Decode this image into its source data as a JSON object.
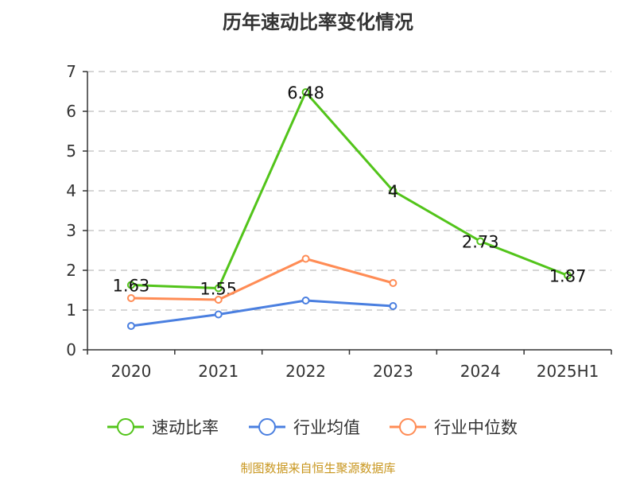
{
  "chart_data": {
    "type": "line",
    "title": "历年速动比率变化情况",
    "categories": [
      "2020",
      "2021",
      "2022",
      "2023",
      "2024",
      "2025H1"
    ],
    "ylim": [
      0,
      7
    ],
    "yticks": [
      0,
      1,
      2,
      3,
      4,
      5,
      6,
      7
    ],
    "grid": true,
    "legend_position": "bottom",
    "series": [
      {
        "name": "速动比率",
        "color": "#52c41a",
        "values": [
          1.63,
          1.55,
          6.48,
          4,
          2.73,
          1.87
        ],
        "labels": [
          "1.63",
          "1.55",
          "6.48",
          "4",
          "2.73",
          "1.87"
        ]
      },
      {
        "name": "行业均值",
        "color": "#4a7fe0",
        "values": [
          0.6,
          0.89,
          1.24,
          1.1,
          null,
          null
        ]
      },
      {
        "name": "行业中位数",
        "color": "#ff8c55",
        "values": [
          1.3,
          1.26,
          2.29,
          1.68,
          null,
          null
        ]
      }
    ]
  },
  "source": "制图数据来自恒生聚源数据库"
}
